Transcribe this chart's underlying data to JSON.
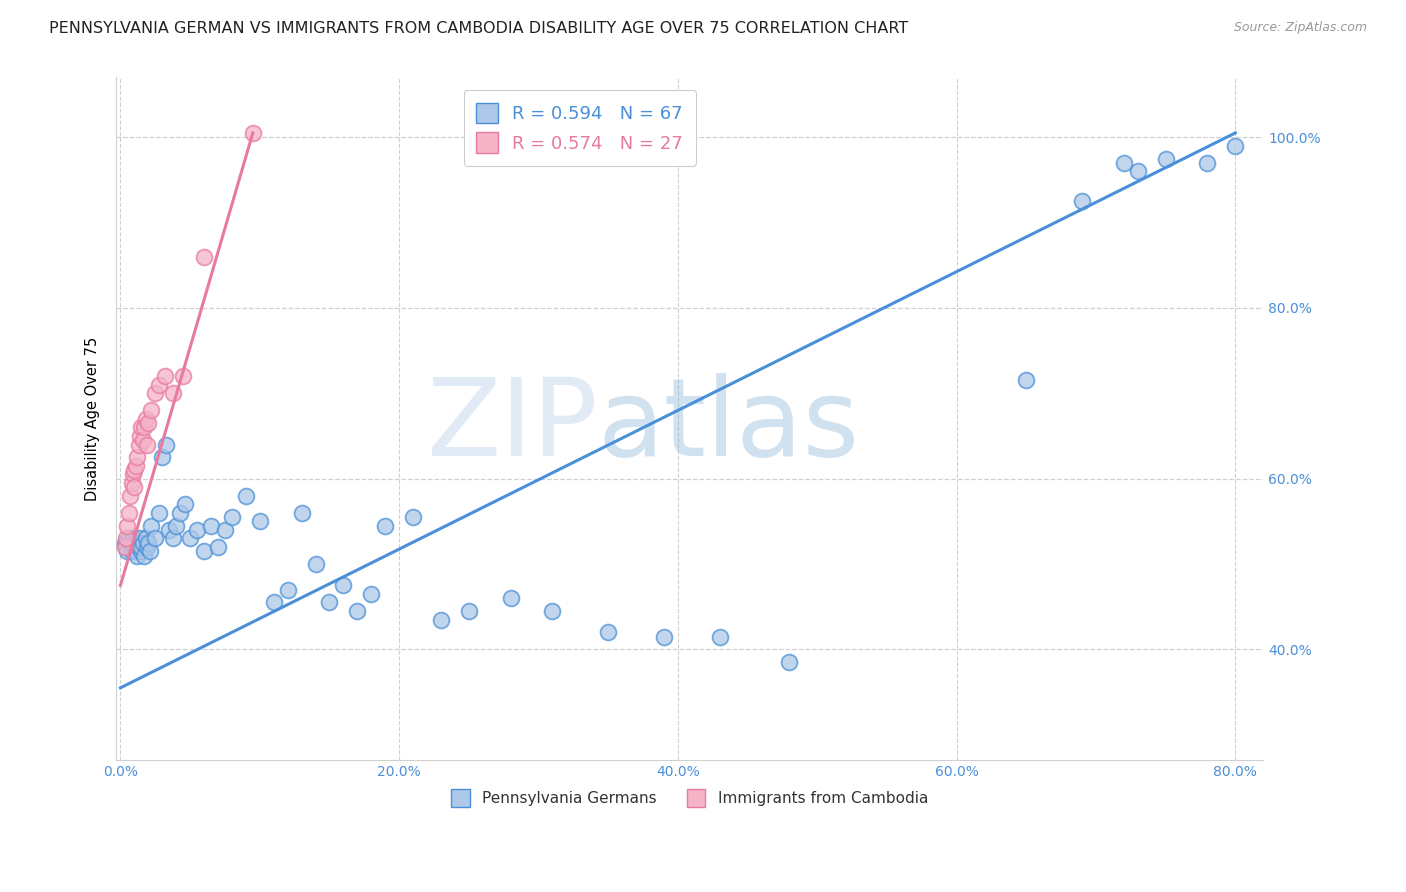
{
  "title": "PENNSYLVANIA GERMAN VS IMMIGRANTS FROM CAMBODIA DISABILITY AGE OVER 75 CORRELATION CHART",
  "source": "Source: ZipAtlas.com",
  "ylabel": "Disability Age Over 75",
  "right_ytick_labels": [
    "40.0%",
    "60.0%",
    "80.0%",
    "100.0%"
  ],
  "right_ytick_values": [
    0.4,
    0.6,
    0.8,
    1.0
  ],
  "xlim": [
    -0.003,
    0.82
  ],
  "ylim": [
    0.27,
    1.07
  ],
  "xtick_labels": [
    "0.0%",
    "",
    "",
    "",
    "20.0%",
    "",
    "",
    "",
    "40.0%",
    "",
    "",
    "",
    "60.0%",
    "",
    "",
    "",
    "80.0%"
  ],
  "xtick_values": [
    0.0,
    0.05,
    0.1,
    0.15,
    0.2,
    0.25,
    0.3,
    0.35,
    0.4,
    0.45,
    0.5,
    0.55,
    0.6,
    0.65,
    0.7,
    0.75,
    0.8
  ],
  "legend_line1": "R = 0.594   N = 67",
  "legend_line2": "R = 0.574   N = 27",
  "legend_label_blue": "Pennsylvania Germans",
  "legend_label_pink": "Immigrants from Cambodia",
  "blue_scatter_x": [
    0.003,
    0.004,
    0.005,
    0.006,
    0.007,
    0.008,
    0.008,
    0.009,
    0.01,
    0.01,
    0.011,
    0.012,
    0.012,
    0.013,
    0.014,
    0.015,
    0.015,
    0.016,
    0.017,
    0.018,
    0.019,
    0.02,
    0.021,
    0.022,
    0.025,
    0.028,
    0.03,
    0.033,
    0.035,
    0.038,
    0.04,
    0.043,
    0.046,
    0.05,
    0.055,
    0.06,
    0.065,
    0.07,
    0.075,
    0.08,
    0.09,
    0.1,
    0.11,
    0.12,
    0.13,
    0.14,
    0.15,
    0.16,
    0.17,
    0.18,
    0.19,
    0.21,
    0.23,
    0.25,
    0.28,
    0.31,
    0.35,
    0.39,
    0.43,
    0.48,
    0.65,
    0.69,
    0.72,
    0.73,
    0.75,
    0.78,
    0.8
  ],
  "blue_scatter_y": [
    0.525,
    0.52,
    0.515,
    0.53,
    0.525,
    0.52,
    0.515,
    0.53,
    0.525,
    0.52,
    0.515,
    0.51,
    0.525,
    0.52,
    0.53,
    0.515,
    0.52,
    0.525,
    0.51,
    0.53,
    0.52,
    0.525,
    0.515,
    0.545,
    0.53,
    0.56,
    0.625,
    0.64,
    0.54,
    0.53,
    0.545,
    0.56,
    0.57,
    0.53,
    0.54,
    0.515,
    0.545,
    0.52,
    0.54,
    0.555,
    0.58,
    0.55,
    0.455,
    0.47,
    0.56,
    0.5,
    0.455,
    0.475,
    0.445,
    0.465,
    0.545,
    0.555,
    0.435,
    0.445,
    0.46,
    0.445,
    0.42,
    0.415,
    0.415,
    0.385,
    0.715,
    0.925,
    0.97,
    0.96,
    0.975,
    0.97,
    0.99
  ],
  "pink_scatter_x": [
    0.003,
    0.004,
    0.005,
    0.006,
    0.007,
    0.008,
    0.009,
    0.01,
    0.01,
    0.011,
    0.012,
    0.013,
    0.014,
    0.015,
    0.016,
    0.017,
    0.018,
    0.019,
    0.02,
    0.022,
    0.025,
    0.028,
    0.032,
    0.038,
    0.045,
    0.06,
    0.095
  ],
  "pink_scatter_y": [
    0.52,
    0.53,
    0.545,
    0.56,
    0.58,
    0.595,
    0.605,
    0.59,
    0.61,
    0.615,
    0.625,
    0.64,
    0.65,
    0.66,
    0.645,
    0.66,
    0.67,
    0.64,
    0.665,
    0.68,
    0.7,
    0.71,
    0.72,
    0.7,
    0.72,
    0.86,
    1.005
  ],
  "blue_line_x": [
    0.0,
    0.8
  ],
  "blue_line_y": [
    0.355,
    1.005
  ],
  "pink_line_x": [
    0.0,
    0.095
  ],
  "pink_line_y": [
    0.475,
    1.005
  ],
  "blue_color": "#4a90d9",
  "pink_color": "#e87a9f",
  "blue_scatter_facecolor": "#adc8e8",
  "pink_scatter_facecolor": "#f5b4c8",
  "watermark_text": "ZIPatlas",
  "grid_color": "#d0d0d0",
  "bg_color": "#ffffff",
  "title_fontsize": 11.5,
  "right_label_color": "#4a90d9"
}
